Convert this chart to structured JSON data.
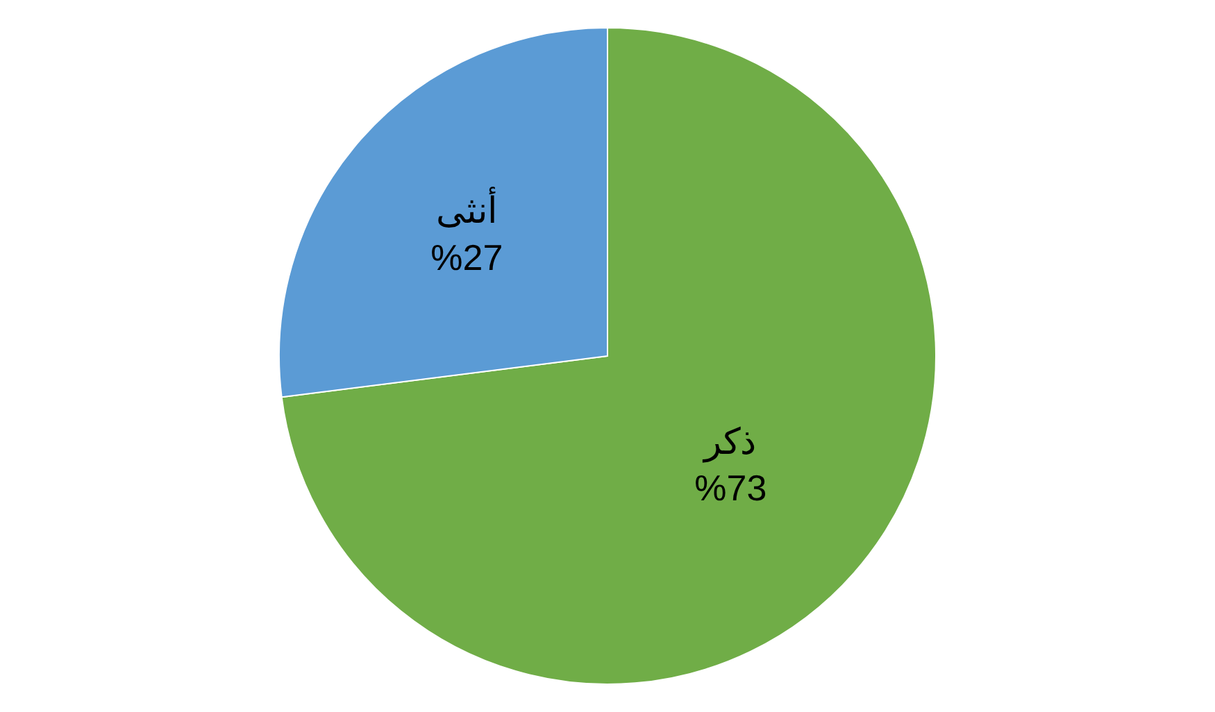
{
  "chart_data": {
    "type": "pie",
    "categories": [
      "ذكر",
      "أنثى"
    ],
    "values": [
      73,
      27
    ],
    "colors": [
      "#70ad47",
      "#5b9bd5"
    ],
    "value_labels": [
      "%73",
      "%27"
    ],
    "legend": false
  }
}
